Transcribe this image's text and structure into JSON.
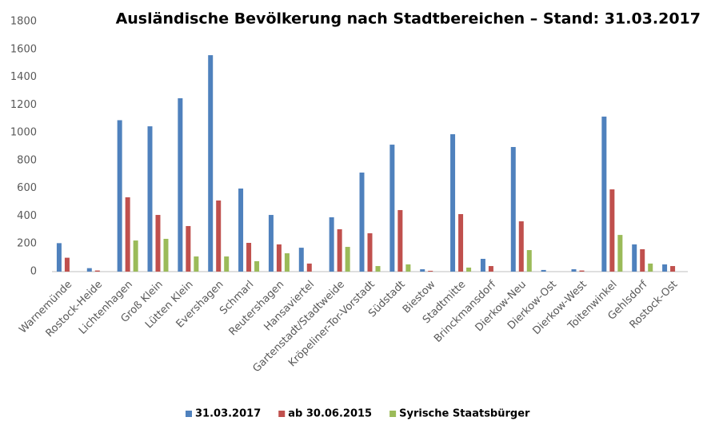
{
  "chart_data": {
    "type": "bar",
    "title": "Ausländische Bevölkerung nach Stadtbereichen – Stand: 31.03.2017",
    "categories": [
      "Warnemünde",
      "Rostock-Heide",
      "Lichtenhagen",
      "Groß Klein",
      "Lütten Klein",
      "Evershagen",
      "Schmarl",
      "Reutershagen",
      "Hansaviertel",
      "Gartenstadt/Stadtweide",
      "Kröpeliner-Tor-Vorstadt",
      "Südstadt",
      "Biestow",
      "Stadtmitte",
      "Brinckmansdorf",
      "Dierkow-Neu",
      "Dierkow-Ost",
      "Dierkow-West",
      "Toitenwinkel",
      "Gehlsdorf",
      "Rostock-Ost"
    ],
    "series": [
      {
        "name": "31.03.2017",
        "color": "#4f81bd",
        "values": [
          205,
          25,
          1090,
          1046,
          1248,
          1558,
          598,
          408,
          172,
          391,
          713,
          914,
          17,
          989,
          92,
          897,
          12,
          17,
          1116,
          196,
          52
        ]
      },
      {
        "name": "ab 30.06.2015",
        "color": "#c0504d",
        "values": [
          100,
          8,
          535,
          408,
          328,
          512,
          207,
          196,
          58,
          305,
          276,
          443,
          6,
          414,
          40,
          362,
          0,
          8,
          592,
          161,
          40
        ]
      },
      {
        "name": "Syrische Staatsbürger",
        "color": "#9bbb59",
        "values": [
          0,
          0,
          224,
          236,
          109,
          109,
          75,
          132,
          0,
          178,
          40,
          52,
          0,
          29,
          0,
          155,
          0,
          0,
          264,
          58,
          0
        ]
      }
    ],
    "ylim": [
      0,
      1800
    ],
    "yticks": [
      0,
      200,
      400,
      600,
      800,
      1000,
      1200,
      1400,
      1600,
      1800
    ],
    "grid": false,
    "legend": "bottom"
  }
}
